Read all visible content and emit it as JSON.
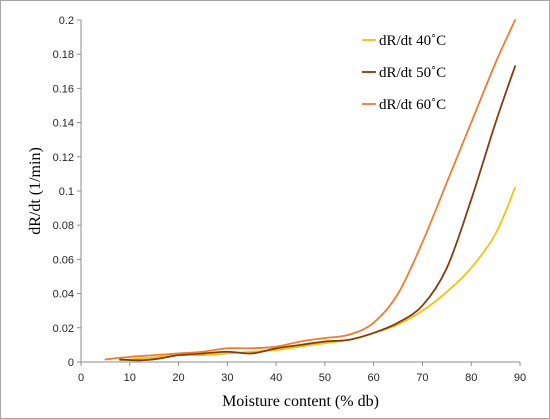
{
  "chart_data": {
    "type": "line",
    "xlabel": "Moisture content (% db)",
    "ylabel": "dR/dt (1/min)",
    "xlim": [
      0,
      90
    ],
    "ylim": [
      0,
      0.2
    ],
    "xticks": [
      0,
      10,
      20,
      30,
      40,
      50,
      60,
      70,
      80,
      90
    ],
    "yticks": [
      0,
      0.02,
      0.04,
      0.06,
      0.08,
      0.1,
      0.12,
      0.14,
      0.16,
      0.18,
      0.2
    ],
    "xtick_labels": [
      "0",
      "10",
      "20",
      "30",
      "40",
      "50",
      "60",
      "70",
      "80",
      "90"
    ],
    "ytick_labels": [
      "0",
      "0.02",
      "0.04",
      "0.06",
      "0.08",
      "0.1",
      "0.12",
      "0.14",
      "0.16",
      "0.18",
      "0.2"
    ],
    "grid": false,
    "legend_position": "top-right",
    "series": [
      {
        "name": "dR/dt 40˚C",
        "color": "#f2c111",
        "x": [
          8,
          12,
          16,
          20,
          25,
          30,
          35,
          40,
          45,
          50,
          55,
          60,
          65,
          70,
          75,
          80,
          85,
          89
        ],
        "y": [
          0.001,
          0.002,
          0.003,
          0.004,
          0.004,
          0.005,
          0.006,
          0.007,
          0.009,
          0.011,
          0.013,
          0.017,
          0.022,
          0.03,
          0.041,
          0.055,
          0.075,
          0.102
        ]
      },
      {
        "name": "dR/dt 50˚C",
        "color": "#843c0c",
        "x": [
          8,
          12,
          16,
          20,
          25,
          30,
          35,
          40,
          45,
          50,
          55,
          60,
          65,
          70,
          75,
          80,
          85,
          89
        ],
        "y": [
          0.0015,
          0.001,
          0.002,
          0.004,
          0.005,
          0.006,
          0.005,
          0.008,
          0.01,
          0.012,
          0.013,
          0.017,
          0.023,
          0.033,
          0.055,
          0.095,
          0.14,
          0.173
        ]
      },
      {
        "name": "dR/dt 60˚C",
        "color": "#ed7d31",
        "x": [
          5,
          10,
          15,
          20,
          25,
          30,
          35,
          40,
          45,
          50,
          55,
          60,
          65,
          70,
          75,
          80,
          85,
          89
        ],
        "y": [
          0.0015,
          0.003,
          0.004,
          0.005,
          0.006,
          0.008,
          0.008,
          0.009,
          0.012,
          0.014,
          0.016,
          0.023,
          0.04,
          0.07,
          0.105,
          0.14,
          0.175,
          0.2
        ]
      }
    ]
  }
}
